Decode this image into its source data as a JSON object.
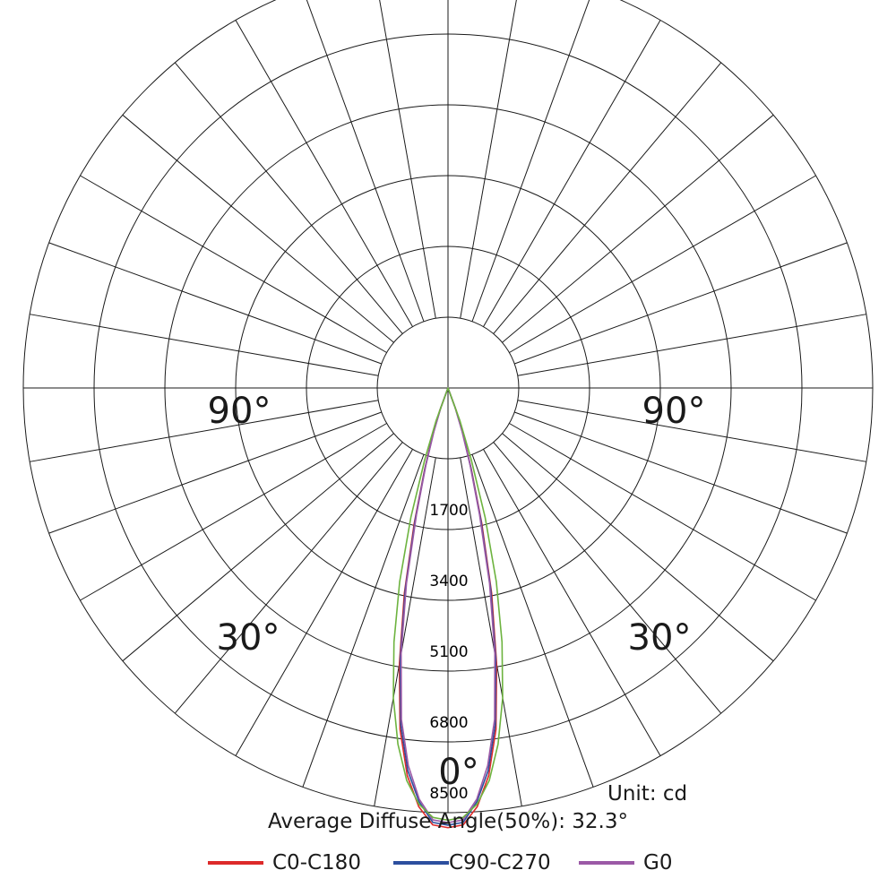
{
  "chart_data": {
    "type": "polar",
    "unit_label": "Unit: cd",
    "average_angle_label": "Average Diffuse Angle(50%): 32.3°",
    "radial_ticks": [
      "1700",
      "3400",
      "5100",
      "6800",
      "8500"
    ],
    "radial_values": [
      1700,
      3400,
      5100,
      6800,
      8500
    ],
    "radial_max": 8500,
    "angle_labels": {
      "bottom": "0°",
      "left_mid": "30°",
      "right_mid": "30°",
      "left_side": "90°",
      "right_side": "90°"
    },
    "spoke_step_deg": 10,
    "series": [
      {
        "name": "C0-C180",
        "color": "#dd2a2a",
        "angles": [
          -20,
          -18,
          -16,
          -14,
          -12,
          -10,
          -8,
          -6,
          -4,
          -2,
          0,
          2,
          4,
          6,
          8,
          10,
          12,
          14,
          16,
          18,
          20
        ],
        "values": [
          500,
          1000,
          1700,
          2800,
          4200,
          5600,
          6900,
          7800,
          8400,
          8750,
          8800,
          8750,
          8400,
          7800,
          6900,
          5600,
          4200,
          2800,
          1700,
          1000,
          500
        ]
      },
      {
        "name": "C90-C270",
        "color": "#2c4f9e",
        "angles": [
          -20,
          -18,
          -16,
          -14,
          -12,
          -10,
          -8,
          -6,
          -4,
          -2,
          0,
          2,
          4,
          6,
          8,
          10,
          12,
          14,
          16,
          18,
          20
        ],
        "values": [
          450,
          950,
          1650,
          2700,
          4100,
          5500,
          6800,
          7700,
          8300,
          8700,
          8750,
          8700,
          8300,
          7700,
          6800,
          5500,
          4100,
          2700,
          1650,
          950,
          450
        ]
      },
      {
        "name": "G0",
        "color": "#9b59a6",
        "angles": [
          -20,
          -18,
          -16,
          -14,
          -12,
          -10,
          -8,
          -6,
          -4,
          -2,
          0,
          2,
          4,
          6,
          8,
          10,
          12,
          14,
          16,
          18,
          20
        ],
        "values": [
          400,
          900,
          1600,
          2600,
          4000,
          5400,
          6700,
          7600,
          8250,
          8650,
          8700,
          8650,
          8250,
          7600,
          6700,
          5400,
          4000,
          2600,
          1600,
          900,
          400
        ]
      },
      {
        "name": "",
        "color": "#6db33f",
        "angles": [
          -20,
          -18,
          -16,
          -14,
          -12,
          -10,
          -8,
          -6,
          -4,
          -2,
          0,
          2,
          4,
          6,
          8,
          10,
          12,
          14,
          16,
          18,
          20
        ],
        "values": [
          700,
          1500,
          2700,
          4000,
          5200,
          6300,
          7200,
          7900,
          8350,
          8600,
          8650,
          8600,
          8350,
          7900,
          7200,
          6300,
          5200,
          4000,
          2700,
          1500,
          700
        ]
      }
    ]
  }
}
